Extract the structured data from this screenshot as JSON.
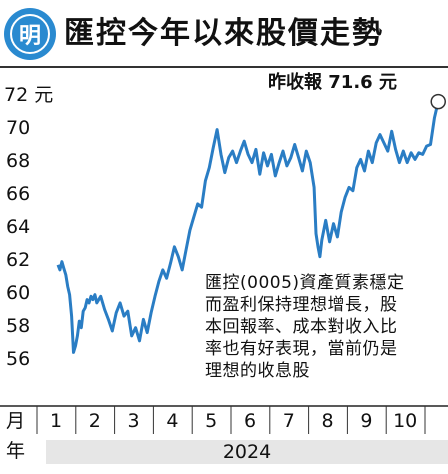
{
  "header": {
    "logo_text": "明",
    "title": "匯控今年以來股價走勢"
  },
  "annotations": {
    "callout": "昨收報 71.6 元",
    "note_lines": [
      "匯控(0005)資產質素穩定",
      "而盈利保持理想增長，股",
      "本回報率、成本對收入比",
      "率也有好表現，當前仍是",
      "理想的收息股"
    ]
  },
  "axis": {
    "month_label": "月",
    "year_label": "年",
    "year": "2024"
  },
  "colors": {
    "line": "#2a7dc4",
    "callout_marker": "#2a7dc4",
    "logo": "#2a8ad0",
    "year_band": "#e6e6e6"
  },
  "chart_data": {
    "type": "line",
    "title": "匯控今年以來股價走勢",
    "ylabel": "元",
    "ylim": [
      55,
      73
    ],
    "y_ticks": [
      {
        "value": 72,
        "label": "72 元"
      },
      {
        "value": 70,
        "label": "70"
      },
      {
        "value": 68,
        "label": "68"
      },
      {
        "value": 66,
        "label": "66"
      },
      {
        "value": 64,
        "label": "64"
      },
      {
        "value": 62,
        "label": "62"
      },
      {
        "value": 60,
        "label": "60"
      },
      {
        "value": 58,
        "label": "58"
      },
      {
        "value": 56,
        "label": "56"
      }
    ],
    "x_categories": [
      "1",
      "2",
      "3",
      "4",
      "5",
      "6",
      "7",
      "8",
      "9",
      "10"
    ],
    "xlim": [
      1,
      10.9
    ],
    "series": [
      {
        "x": [
          1.0,
          1.05,
          1.1,
          1.15,
          1.2,
          1.25,
          1.3,
          1.35,
          1.4,
          1.45,
          1.5,
          1.55,
          1.6,
          1.65,
          1.7,
          1.75,
          1.8,
          1.85,
          1.9,
          1.95,
          2.0,
          2.1,
          2.2,
          2.3,
          2.4,
          2.5,
          2.6,
          2.7,
          2.8,
          2.9,
          3.0,
          3.1,
          3.2,
          3.3,
          3.4,
          3.5,
          3.6,
          3.7,
          3.8,
          3.9,
          4.0,
          4.1,
          4.2,
          4.3,
          4.4,
          4.5,
          4.6,
          4.7,
          4.8,
          4.9,
          5.0,
          5.1,
          5.2,
          5.3,
          5.4,
          5.5,
          5.6,
          5.7,
          5.8,
          5.9,
          6.0,
          6.1,
          6.2,
          6.3,
          6.4,
          6.5,
          6.6,
          6.7,
          6.8,
          6.9,
          7.0,
          7.1,
          7.2,
          7.3,
          7.4,
          7.5,
          7.6,
          7.65,
          7.7,
          7.75,
          7.8,
          7.9,
          8.0,
          8.1,
          8.2,
          8.3,
          8.4,
          8.5,
          8.6,
          8.7,
          8.8,
          8.9,
          9.0,
          9.1,
          9.2,
          9.3,
          9.4,
          9.5,
          9.6,
          9.7,
          9.8,
          9.9,
          10.0,
          10.1,
          10.2,
          10.3,
          10.4,
          10.5,
          10.6,
          10.7,
          10.8
        ],
        "y": [
          61.7,
          61.4,
          61.9,
          61.5,
          61.1,
          60.4,
          59.9,
          58.6,
          56.4,
          56.8,
          57.4,
          58.3,
          57.9,
          58.9,
          59.1,
          59.6,
          59.4,
          59.8,
          59.6,
          59.9,
          59.4,
          59.8,
          59.0,
          58.4,
          57.7,
          58.8,
          59.4,
          58.6,
          58.9,
          57.4,
          57.9,
          57.1,
          58.4,
          57.6,
          58.8,
          59.8,
          60.7,
          61.4,
          60.9,
          61.8,
          62.8,
          62.2,
          61.4,
          62.6,
          63.8,
          64.6,
          65.4,
          65.2,
          66.8,
          67.6,
          68.8,
          69.9,
          68.4,
          67.3,
          68.2,
          68.6,
          67.9,
          68.6,
          69.2,
          68.4,
          67.9,
          68.7,
          67.2,
          68.5,
          67.7,
          68.4,
          67.1,
          67.9,
          68.6,
          67.7,
          68.2,
          69.0,
          68.2,
          67.4,
          68.6,
          67.9,
          66.4,
          63.6,
          62.8,
          62.2,
          63.2,
          64.4,
          63.1,
          64.2,
          63.4,
          64.9,
          65.8,
          66.4,
          66.2,
          67.6,
          68.1,
          67.4,
          68.6,
          67.9,
          69.1,
          69.6,
          69.1,
          68.6,
          69.8,
          68.7,
          67.9,
          68.6,
          67.9,
          68.5,
          68.1,
          68.5,
          68.4,
          68.9,
          69.0,
          70.6,
          71.6
        ]
      }
    ],
    "last_point": {
      "x": 10.8,
      "y": 71.6,
      "label": "昨收報 71.6 元"
    },
    "grid": false
  }
}
